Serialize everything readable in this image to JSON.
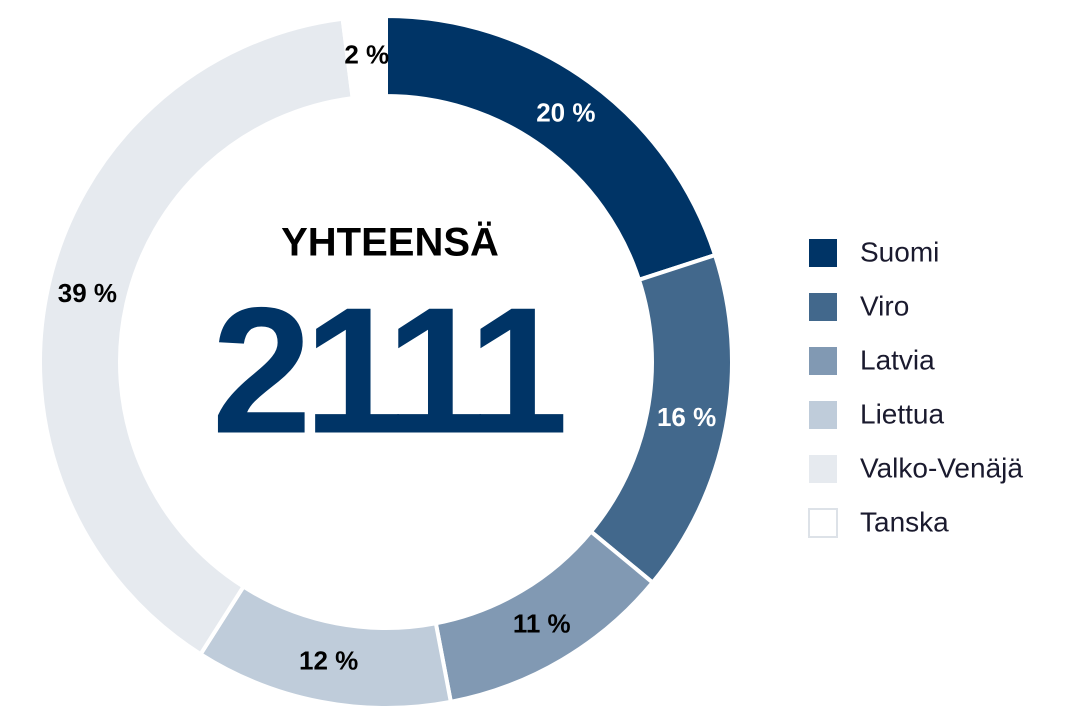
{
  "chart_data": {
    "type": "donut",
    "center_label": "YHTEENSÄ",
    "total": 2111,
    "categories": [
      "Suomi",
      "Viro",
      "Latvia",
      "Liettua",
      "Valko-Venäjä",
      "Tanska"
    ],
    "values": [
      20,
      16,
      11,
      12,
      39,
      2
    ],
    "value_labels": [
      "20 %",
      "16 %",
      "11 %",
      "12 %",
      "39 %",
      "2 %"
    ],
    "colors": [
      "#003466",
      "#42688c",
      "#8199b3",
      "#bfccda",
      "#e6eaef",
      "#ffffff"
    ],
    "legend": "right"
  }
}
